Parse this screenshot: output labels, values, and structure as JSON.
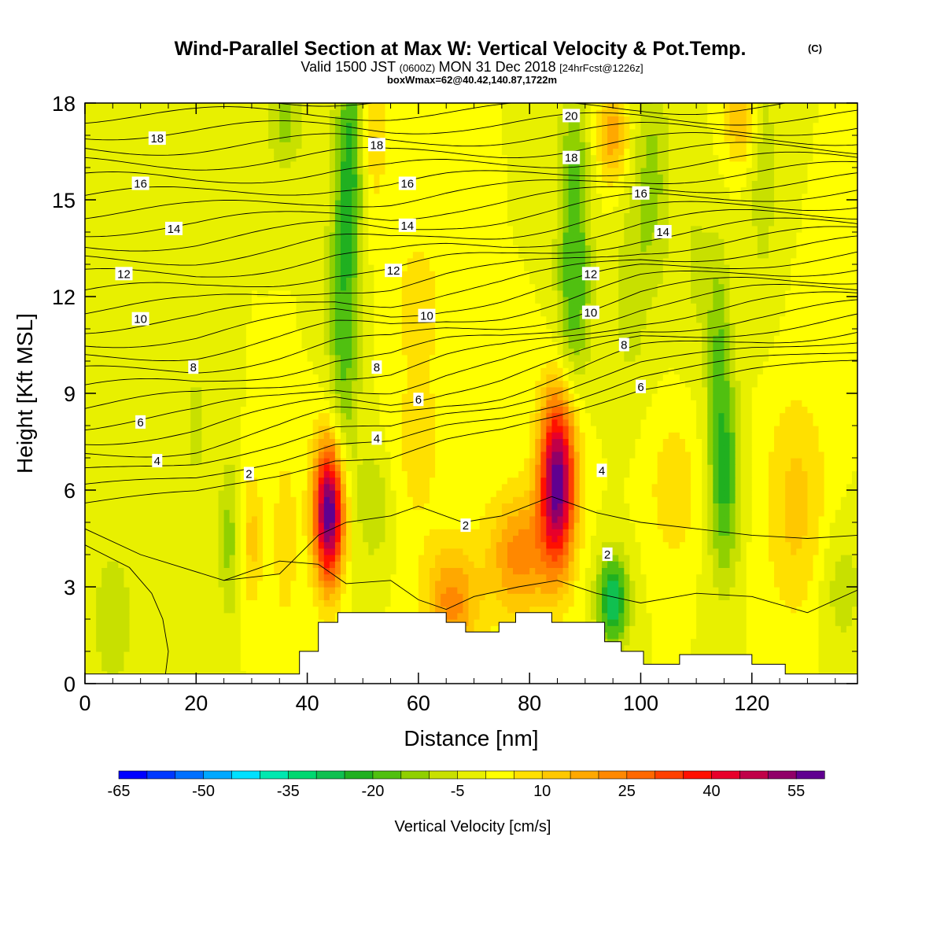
{
  "title": "Wind-Parallel Section at Max W: Vertical Velocity & Pot.Temp.",
  "copyright": "(C)",
  "subtitle": {
    "prefix": "Valid 1500 JST",
    "utc": "(0600Z)",
    "date": "MON 31 Dec 2018",
    "forecast": "[24hrFcst@1226z]"
  },
  "boxinfo": "boxWmax=62@40.42,140.87,1722m",
  "chart_data": {
    "type": "heatmap",
    "xlabel": "Distance [nm]",
    "ylabel": "Height [Kft MSL]",
    "xlim": [
      0,
      139
    ],
    "ylim": [
      0,
      18
    ],
    "x_ticks": [
      0,
      20,
      40,
      60,
      80,
      100,
      120
    ],
    "y_ticks": [
      0,
      3,
      6,
      9,
      12,
      15,
      18
    ],
    "colorbar": {
      "label": "Vertical Velocity [cm/s]",
      "bin_edges": [
        -65,
        -60,
        -55,
        -50,
        -45,
        -40,
        -35,
        -30,
        -25,
        -20,
        -15,
        -10,
        -5,
        0,
        5,
        10,
        15,
        20,
        25,
        30,
        35,
        40,
        45,
        50,
        55,
        60
      ],
      "tick_labels": [
        "-65",
        "-50",
        "-35",
        "-20",
        "-5",
        "10",
        "25",
        "40",
        "55"
      ],
      "colors": [
        "#0000ff",
        "#0038ff",
        "#0070ff",
        "#00a8ff",
        "#00e0ff",
        "#00e8b0",
        "#00d870",
        "#10c050",
        "#20b020",
        "#50c010",
        "#90d000",
        "#c8e000",
        "#e8f000",
        "#ffff00",
        "#ffe000",
        "#ffc800",
        "#ffa800",
        "#ff8800",
        "#ff6800",
        "#ff4000",
        "#ff1000",
        "#e8002a",
        "#c00048",
        "#900068",
        "#600090"
      ]
    },
    "w_centers": [
      {
        "x": 44,
        "y": 5.3,
        "value": 62
      },
      {
        "x": 85,
        "y": 6.3,
        "value": 60
      },
      {
        "x": 95,
        "y": 2.5,
        "value": -28
      },
      {
        "x": 46,
        "y": 11.5,
        "value": -18
      },
      {
        "x": 88,
        "y": 12.0,
        "value": -18
      },
      {
        "x": 115,
        "y": 6.5,
        "value": -20
      },
      {
        "x": 26,
        "y": 4.5,
        "value": -12
      },
      {
        "x": 102,
        "y": 15.5,
        "value": -12
      },
      {
        "x": 66,
        "y": 2.5,
        "value": 22
      },
      {
        "x": 78,
        "y": 4.0,
        "value": 22
      },
      {
        "x": 118,
        "y": 17.5,
        "value": 15
      },
      {
        "x": 95,
        "y": 17.0,
        "value": 18
      }
    ],
    "terrain": [
      [
        0,
        0.3
      ],
      [
        38.6,
        0.3
      ],
      [
        38.6,
        1.0
      ],
      [
        42,
        1.0
      ],
      [
        42,
        1.9
      ],
      [
        45.5,
        1.9
      ],
      [
        45.5,
        2.2
      ],
      [
        65,
        2.2
      ],
      [
        65,
        1.9
      ],
      [
        68.5,
        1.9
      ],
      [
        68.5,
        1.6
      ],
      [
        74.5,
        1.6
      ],
      [
        74.5,
        1.9
      ],
      [
        77.5,
        1.9
      ],
      [
        77.5,
        2.2
      ],
      [
        84,
        2.2
      ],
      [
        84,
        1.9
      ],
      [
        93.5,
        1.9
      ],
      [
        93.5,
        1.3
      ],
      [
        96.5,
        1.3
      ],
      [
        96.5,
        1.0
      ],
      [
        100.5,
        1.0
      ],
      [
        100.5,
        0.6
      ],
      [
        107,
        0.6
      ],
      [
        107,
        0.9
      ],
      [
        120,
        0.9
      ],
      [
        120,
        0.6
      ],
      [
        126,
        0.6
      ],
      [
        126,
        0.3
      ],
      [
        139,
        0.3
      ]
    ],
    "theta_contours": {
      "levels": [
        2,
        4,
        6,
        8,
        10,
        12,
        14,
        16,
        18,
        20
      ],
      "labels": [
        {
          "text": "18",
          "x": 13,
          "y": 16.9
        },
        {
          "text": "16",
          "x": 10,
          "y": 15.5
        },
        {
          "text": "14",
          "x": 16,
          "y": 14.1
        },
        {
          "text": "12",
          "x": 7,
          "y": 12.7
        },
        {
          "text": "10",
          "x": 10,
          "y": 11.3
        },
        {
          "text": "8",
          "x": 19.5,
          "y": 9.8
        },
        {
          "text": "6",
          "x": 10,
          "y": 8.1
        },
        {
          "text": "4",
          "x": 13,
          "y": 6.9
        },
        {
          "text": "2",
          "x": 29.5,
          "y": 6.5
        },
        {
          "text": "18",
          "x": 52.5,
          "y": 16.7
        },
        {
          "text": "16",
          "x": 58,
          "y": 15.5
        },
        {
          "text": "14",
          "x": 58,
          "y": 14.2
        },
        {
          "text": "12",
          "x": 55.5,
          "y": 12.8
        },
        {
          "text": "10",
          "x": 61.5,
          "y": 11.4
        },
        {
          "text": "8",
          "x": 52.5,
          "y": 9.8
        },
        {
          "text": "6",
          "x": 60,
          "y": 8.8
        },
        {
          "text": "4",
          "x": 52.5,
          "y": 7.6
        },
        {
          "text": "2",
          "x": 68.5,
          "y": 4.9
        },
        {
          "text": "20",
          "x": 87.5,
          "y": 17.6
        },
        {
          "text": "18",
          "x": 87.5,
          "y": 16.3
        },
        {
          "text": "16",
          "x": 100,
          "y": 15.2
        },
        {
          "text": "14",
          "x": 104,
          "y": 14.0
        },
        {
          "text": "12",
          "x": 91,
          "y": 12.7
        },
        {
          "text": "10",
          "x": 91,
          "y": 11.5
        },
        {
          "text": "8",
          "x": 97,
          "y": 10.5
        },
        {
          "text": "6",
          "x": 100,
          "y": 9.2
        },
        {
          "text": "4",
          "x": 93,
          "y": 6.6
        },
        {
          "text": "2",
          "x": 94,
          "y": 4.0
        }
      ]
    }
  }
}
